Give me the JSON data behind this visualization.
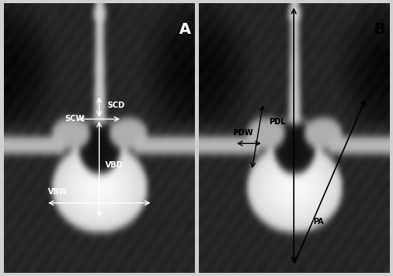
{
  "fig_width": 5.0,
  "fig_height": 3.51,
  "dpi": 100,
  "bg_color": "#d0d0d0",
  "panel_A_label": "A",
  "panel_B_label": "B",
  "label_color_A": "white",
  "label_color_B": "black",
  "arrow_color_A": "white",
  "arrow_color_B": "black",
  "text_color_A": "white",
  "text_color_B": "black",
  "labels_A": [
    "SCD",
    "SCW",
    "VBD",
    "VBW"
  ],
  "labels_B": [
    "PDL",
    "PDW",
    "PA"
  ]
}
